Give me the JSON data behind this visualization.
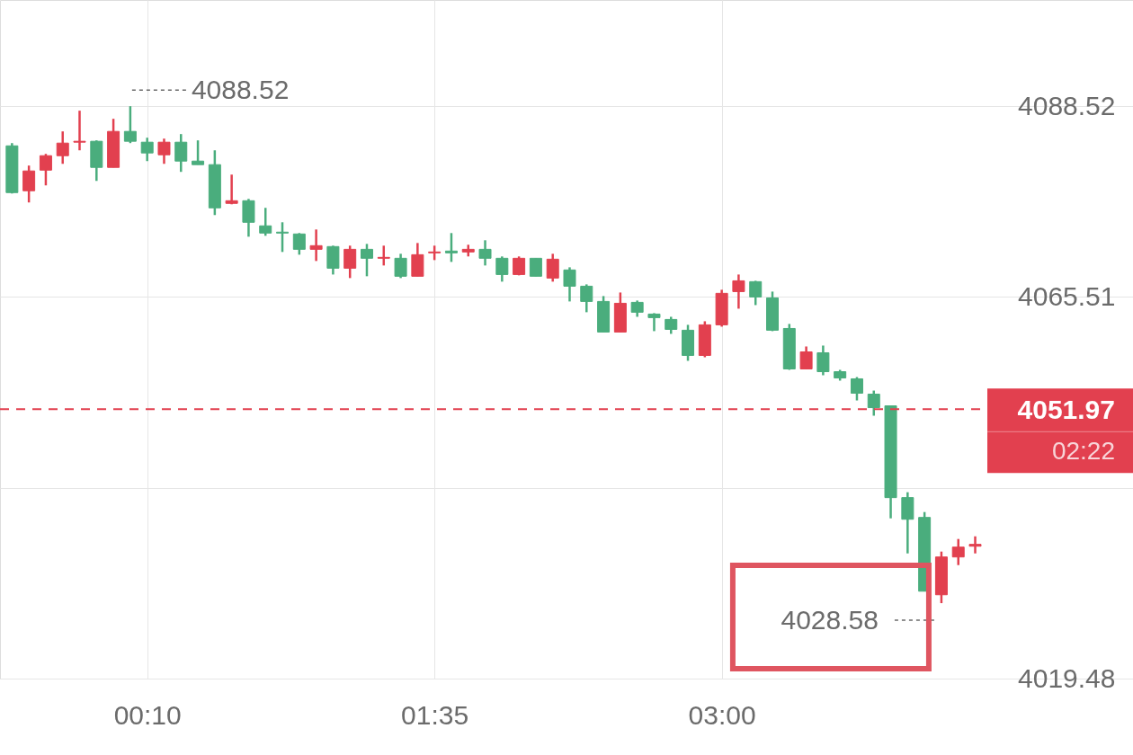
{
  "chart_data": {
    "type": "candlestick",
    "x": [
      -0.5,
      -0.4167,
      -0.3333,
      -0.25,
      -0.1667,
      -0.0833,
      0,
      0.0833,
      0.1667,
      0.25,
      0.3333,
      0.4167,
      0.5,
      0.5833,
      0.6667,
      0.75,
      0.8333,
      0.9167,
      1,
      1.0833,
      1.1667,
      1.25,
      1.3333,
      1.4167,
      1.5,
      1.5833,
      1.6667,
      1.75,
      1.8333,
      1.9167,
      2,
      2.0833,
      2.1667,
      2.25,
      2.3333,
      2.4167,
      2.5,
      2.5833,
      2.6667,
      2.75,
      2.8333,
      2.9167,
      3,
      3.0833,
      3.1667,
      3.25,
      3.3333,
      3.4167,
      3.5,
      3.5833,
      3.6667,
      3.75,
      3.8333,
      3.9167,
      4,
      4.0833,
      4.1667,
      4.25
    ],
    "ohlc": [
      [
        4083.74,
        4084.07,
        4077.99,
        4078.1
      ],
      [
        4078.32,
        4081.36,
        4076.91,
        4080.71
      ],
      [
        4080.81,
        4082.77,
        4078.97,
        4082.55
      ],
      [
        4082.55,
        4085.48,
        4081.57,
        4084.07
      ],
      [
        4084.18,
        4087.98,
        4083.2,
        4084.29
      ],
      [
        4084.29,
        4084.4,
        4079.51,
        4081.14
      ],
      [
        4081.14,
        4087.0,
        4081.14,
        4085.48
      ],
      [
        4085.48,
        4088.52,
        4084.07,
        4084.29
      ],
      [
        4084.18,
        4084.72,
        4081.9,
        4082.88
      ],
      [
        4082.66,
        4084.61,
        4081.57,
        4084.18
      ],
      [
        4084.18,
        4085.16,
        4080.6,
        4081.9
      ],
      [
        4081.9,
        4084.4,
        4081.47,
        4081.47
      ],
      [
        4081.47,
        4083.2,
        4075.39,
        4076.26
      ],
      [
        4076.8,
        4080.27,
        4076.69,
        4077.12
      ],
      [
        4077.12,
        4077.34,
        4072.78,
        4074.52
      ],
      [
        4074.09,
        4076.26,
        4072.89,
        4073.22
      ],
      [
        4073.33,
        4074.52,
        4070.94,
        4073.22
      ],
      [
        4073.11,
        4073.22,
        4070.61,
        4071.26
      ],
      [
        4071.26,
        4073.65,
        4069.85,
        4071.7
      ],
      [
        4071.59,
        4071.7,
        4068.22,
        4068.98
      ],
      [
        4068.98,
        4071.7,
        4067.79,
        4071.26
      ],
      [
        4071.26,
        4071.91,
        4068.01,
        4070.18
      ],
      [
        4070.18,
        4071.7,
        4069.31,
        4070.29
      ],
      [
        4070.18,
        4070.72,
        4067.79,
        4068.01
      ],
      [
        4068.01,
        4072.02,
        4068.01,
        4070.61
      ],
      [
        4070.83,
        4071.7,
        4069.96,
        4070.94
      ],
      [
        4071.05,
        4073.22,
        4069.74,
        4070.83
      ],
      [
        4070.94,
        4071.81,
        4070.4,
        4071.26
      ],
      [
        4071.26,
        4072.35,
        4069.31,
        4070.18
      ],
      [
        4070.18,
        4070.4,
        4067.36,
        4068.22
      ],
      [
        4068.22,
        4070.4,
        4068.12,
        4070.18
      ],
      [
        4070.18,
        4070.18,
        4068.01,
        4068.01
      ],
      [
        4067.79,
        4070.72,
        4067.36,
        4070.07
      ],
      [
        4068.77,
        4069.09,
        4064.97,
        4066.81
      ],
      [
        4066.81,
        4067.03,
        4063.67,
        4064.97
      ],
      [
        4064.97,
        4065.62,
        4061.28,
        4061.28
      ],
      [
        4061.28,
        4066.05,
        4061.28,
        4064.75
      ],
      [
        4064.86,
        4065.08,
        4063.12,
        4063.67
      ],
      [
        4063.45,
        4063.56,
        4061.39,
        4063.02
      ],
      [
        4062.8,
        4063.12,
        4061.06,
        4061.6
      ],
      [
        4061.5,
        4062.15,
        4057.81,
        4058.46
      ],
      [
        4058.46,
        4062.58,
        4058.24,
        4062.15
      ],
      [
        4062.15,
        4066.38,
        4061.93,
        4065.95
      ],
      [
        4066.16,
        4068.22,
        4064.1,
        4067.46
      ],
      [
        4067.36,
        4067.46,
        4064.53,
        4065.51
      ],
      [
        4065.4,
        4066.16,
        4061.39,
        4061.5
      ],
      [
        4061.71,
        4062.26,
        4056.72,
        4056.83
      ],
      [
        4056.83,
        4059.54,
        4056.83,
        4058.89
      ],
      [
        4058.78,
        4059.65,
        4056.07,
        4056.5
      ],
      [
        4056.5,
        4056.72,
        4055.42,
        4055.74
      ],
      [
        4055.64,
        4055.85,
        4053.03,
        4053.9
      ],
      [
        4053.79,
        4054.22,
        4051.19,
        4052.16
      ],
      [
        4052.38,
        4052.38,
        4038.81,
        4041.31
      ],
      [
        4041.31,
        4041.96,
        4034.58,
        4038.7
      ],
      [
        4038.92,
        4039.57,
        4030.02,
        4030.02
      ],
      [
        4029.59,
        4034.8,
        4028.58,
        4034.15
      ],
      [
        4034.15,
        4036.32,
        4033.17,
        4035.34
      ],
      [
        4035.45,
        4036.64,
        4034.58,
        4035.67
      ]
    ],
    "colors": [
      "#4aad7d",
      "#e2404f",
      "#e2404f",
      "#e2404f",
      "#e2404f",
      "#4aad7d",
      "#e2404f",
      "#4aad7d",
      "#4aad7d",
      "#e2404f",
      "#4aad7d",
      "#4aad7d",
      "#4aad7d",
      "#e2404f",
      "#4aad7d",
      "#4aad7d",
      "#4aad7d",
      "#4aad7d",
      "#e2404f",
      "#4aad7d",
      "#e2404f",
      "#4aad7d",
      "#e2404f",
      "#4aad7d",
      "#e2404f",
      "#e2404f",
      "#4aad7d",
      "#e2404f",
      "#4aad7d",
      "#4aad7d",
      "#e2404f",
      "#4aad7d",
      "#e2404f",
      "#4aad7d",
      "#4aad7d",
      "#4aad7d",
      "#e2404f",
      "#4aad7d",
      "#4aad7d",
      "#4aad7d",
      "#4aad7d",
      "#e2404f",
      "#e2404f",
      "#e2404f",
      "#4aad7d",
      "#4aad7d",
      "#4aad7d",
      "#e2404f",
      "#4aad7d",
      "#4aad7d",
      "#4aad7d",
      "#4aad7d",
      "#4aad7d",
      "#4aad7d",
      "#4aad7d",
      "#e2404f",
      "#e2404f",
      "#e2404f"
    ],
    "xlim": [
      -0.537,
      5.006
    ],
    "xticks": [
      {
        "value": 0.1667,
        "label": "00:10"
      },
      {
        "value": 1.5833,
        "label": "01:35"
      },
      {
        "value": 3,
        "label": "03:00"
      }
    ],
    "ylim": [
      4019.48,
      4101.33
    ],
    "yticks": [
      4088.52,
      4065.51,
      {
        "value": 4042.5,
        "label": null
      },
      4019.48
    ],
    "grid": true,
    "ref_lines": [
      {
        "axis": "y",
        "value": 4051.97,
        "label": "4051.97",
        "color": "#e2404f",
        "line_style": "dashed"
      }
    ],
    "annotations": [
      "02:22",
      {
        "text": "4088.52",
        "x": 0.0833,
        "y": 4088.52
      },
      {
        "text": "4028.58",
        "x": 4.0833,
        "y": 4028.58
      }
    ]
  }
}
